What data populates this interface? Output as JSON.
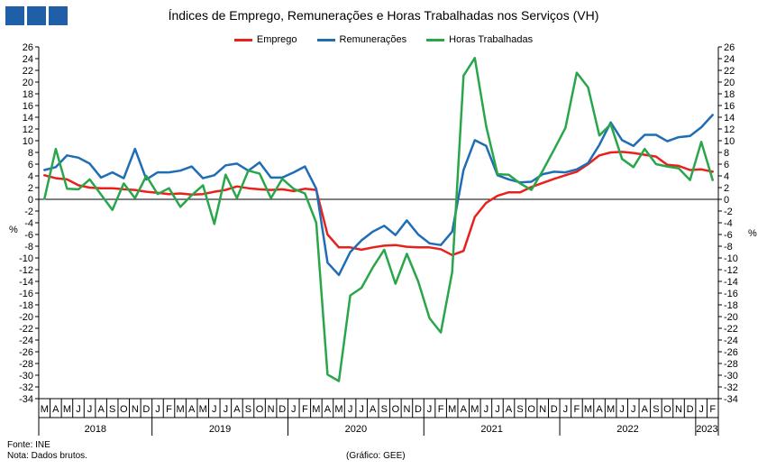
{
  "chart_data": {
    "type": "line",
    "title": "Índices de Emprego, Remunerações e Horas Trabalhadas nos Serviços (VH)",
    "ylabel_left": "%",
    "ylabel_right": "%",
    "ylim": [
      -34,
      26
    ],
    "yticks": [
      26,
      24,
      22,
      20,
      18,
      16,
      14,
      12,
      10,
      8,
      6,
      4,
      2,
      0,
      -2,
      -4,
      -6,
      -8,
      -10,
      -12,
      -14,
      -16,
      -18,
      -20,
      -22,
      -24,
      -26,
      -28,
      -30,
      -32,
      -34
    ],
    "legend_position": "top-center",
    "grid": false,
    "x": [
      "M",
      "A",
      "M",
      "J",
      "J",
      "A",
      "S",
      "O",
      "N",
      "D",
      "J",
      "F",
      "M",
      "A",
      "M",
      "J",
      "J",
      "A",
      "S",
      "O",
      "N",
      "D",
      "J",
      "F",
      "M",
      "A",
      "M",
      "J",
      "J",
      "A",
      "S",
      "O",
      "N",
      "D",
      "J",
      "F",
      "M",
      "A",
      "M",
      "J",
      "J",
      "A",
      "S",
      "O",
      "N",
      "D",
      "J",
      "F",
      "M",
      "A",
      "M",
      "J",
      "J",
      "A",
      "S",
      "O",
      "N",
      "D",
      "J",
      "F"
    ],
    "year_groups": [
      {
        "label": "2018",
        "start": 0,
        "end": 9
      },
      {
        "label": "2019",
        "start": 10,
        "end": 21
      },
      {
        "label": "2020",
        "start": 22,
        "end": 33
      },
      {
        "label": "2021",
        "start": 34,
        "end": 45
      },
      {
        "label": "2022",
        "start": 46,
        "end": 57
      },
      {
        "label": "2023",
        "start": 58,
        "end": 59
      }
    ],
    "series": [
      {
        "name": "Emprego",
        "color": "#e8211c",
        "values": [
          4.1,
          3.6,
          3.4,
          2.4,
          2.0,
          1.9,
          1.9,
          1.7,
          1.6,
          1.3,
          1.1,
          0.9,
          1.0,
          0.8,
          0.9,
          1.3,
          1.6,
          2.2,
          1.9,
          1.7,
          1.6,
          1.7,
          1.4,
          1.8,
          1.6,
          -6.0,
          -8.2,
          -8.2,
          -8.6,
          -8.2,
          -7.9,
          -7.8,
          -8.1,
          -8.2,
          -8.2,
          -8.5,
          -9.5,
          -8.8,
          -3.0,
          -0.6,
          0.6,
          1.2,
          1.2,
          2.1,
          2.8,
          3.5,
          4.1,
          4.7,
          6.0,
          7.5,
          8.0,
          8.1,
          7.9,
          7.6,
          7.3,
          5.9,
          5.7,
          5.0,
          5.1,
          4.7
        ]
      },
      {
        "name": "Remunerações",
        "color": "#1f6db5",
        "values": [
          5.0,
          5.5,
          7.5,
          7.1,
          6.1,
          3.7,
          4.6,
          3.6,
          8.6,
          3.4,
          4.6,
          4.6,
          4.9,
          5.6,
          3.6,
          4.1,
          5.8,
          6.1,
          4.9,
          6.3,
          3.7,
          3.7,
          4.6,
          5.6,
          1.8,
          -10.8,
          -12.9,
          -9.0,
          -7.0,
          -5.5,
          -4.5,
          -6.1,
          -3.6,
          -6.0,
          -7.5,
          -7.8,
          -5.5,
          5.0,
          10.1,
          9.1,
          4.1,
          3.4,
          2.9,
          3.0,
          4.3,
          4.7,
          4.6,
          5.1,
          6.2,
          9.3,
          13.1,
          10.1,
          9.1,
          11.0,
          11.0,
          9.9,
          10.6,
          10.8,
          12.3,
          14.4
        ]
      },
      {
        "name": "Horas Trabalhadas",
        "color": "#2aa64a",
        "values": [
          0.1,
          8.6,
          1.8,
          1.7,
          3.4,
          0.8,
          -1.8,
          2.7,
          0.2,
          4.0,
          0.9,
          1.9,
          -1.3,
          0.7,
          2.4,
          -4.2,
          4.2,
          0.2,
          4.9,
          4.4,
          0.2,
          3.5,
          1.8,
          1.0,
          -4.0,
          -29.9,
          -31.0,
          -16.4,
          -15.1,
          -11.6,
          -8.6,
          -14.4,
          -9.3,
          -14.0,
          -20.3,
          -22.7,
          -12.4,
          21.1,
          24.1,
          12.5,
          4.3,
          4.2,
          2.7,
          1.6,
          4.9,
          8.5,
          12.2,
          21.6,
          19.1,
          10.9,
          12.8,
          6.9,
          5.5,
          8.6,
          6.0,
          5.6,
          5.3,
          3.3,
          9.8,
          3.3
        ]
      }
    ]
  },
  "footer": {
    "source": "Fonte: INE",
    "note": "Nota: Dados brutos.",
    "credit": "(Gráfico: GEE)"
  }
}
